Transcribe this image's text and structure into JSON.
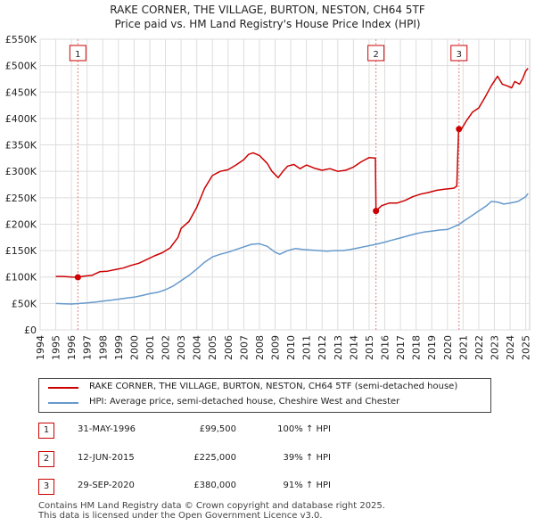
{
  "header": {
    "title_line1": "RAKE CORNER, THE VILLAGE, BURTON, NESTON, CH64 5TF",
    "title_line2": "Price paid vs. HM Land Registry's House Price Index (HPI)"
  },
  "colors": {
    "property": "#cc0000",
    "hpi": "#6699cc",
    "grid": "#dddddd",
    "marker_line": "#e08080"
  },
  "chart_data": {
    "type": "line",
    "title": "RAKE CORNER, THE VILLAGE, BURTON, NESTON, CH64 5TF",
    "subtitle": "Price paid vs. HM Land Registry's House Price Index (HPI)",
    "xlim": [
      1994,
      2025.25
    ],
    "ylim": [
      0,
      550000
    ],
    "yticks": [
      {
        "value": 0,
        "label": "£0"
      },
      {
        "value": 50000,
        "label": "£50K"
      },
      {
        "value": 100000,
        "label": "£100K"
      },
      {
        "value": 150000,
        "label": "£150K"
      },
      {
        "value": 200000,
        "label": "£200K"
      },
      {
        "value": 250000,
        "label": "£250K"
      },
      {
        "value": 300000,
        "label": "£300K"
      },
      {
        "value": 350000,
        "label": "£350K"
      },
      {
        "value": 400000,
        "label": "£400K"
      },
      {
        "value": 450000,
        "label": "£450K"
      },
      {
        "value": 500000,
        "label": "£500K"
      },
      {
        "value": 550000,
        "label": "£550K"
      }
    ],
    "xticks": [
      "1994",
      "1995",
      "1996",
      "1997",
      "1998",
      "1999",
      "2000",
      "2001",
      "2002",
      "2003",
      "2004",
      "2005",
      "2006",
      "2007",
      "2008",
      "2009",
      "2010",
      "2011",
      "2012",
      "2013",
      "2014",
      "2015",
      "2016",
      "2017",
      "2018",
      "2019",
      "2020",
      "2021",
      "2022",
      "2023",
      "2024",
      "2025"
    ],
    "grid": true,
    "series": [
      {
        "name": "RAKE CORNER, THE VILLAGE, BURTON, NESTON, CH64 5TF (semi-detached house)",
        "color": "#cc0000",
        "points": [
          [
            1995.0,
            101000
          ],
          [
            1995.5,
            101000
          ],
          [
            1996.0,
            100000
          ],
          [
            1996.41,
            99500
          ],
          [
            1996.8,
            101500
          ],
          [
            1997.3,
            103000
          ],
          [
            1997.8,
            110000
          ],
          [
            1998.3,
            111000
          ],
          [
            1998.8,
            114000
          ],
          [
            1999.3,
            117000
          ],
          [
            1999.8,
            122000
          ],
          [
            2000.3,
            126000
          ],
          [
            2000.8,
            133000
          ],
          [
            2001.3,
            140000
          ],
          [
            2001.8,
            146000
          ],
          [
            2002.3,
            155000
          ],
          [
            2002.8,
            175000
          ],
          [
            2003.0,
            192000
          ],
          [
            2003.5,
            205000
          ],
          [
            2004.0,
            232000
          ],
          [
            2004.5,
            268000
          ],
          [
            2005.0,
            292000
          ],
          [
            2005.5,
            300000
          ],
          [
            2006.0,
            303000
          ],
          [
            2006.5,
            312000
          ],
          [
            2007.0,
            322000
          ],
          [
            2007.3,
            332000
          ],
          [
            2007.6,
            335000
          ],
          [
            2008.0,
            330000
          ],
          [
            2008.5,
            315000
          ],
          [
            2008.8,
            300000
          ],
          [
            2009.2,
            288000
          ],
          [
            2009.5,
            300000
          ],
          [
            2009.8,
            310000
          ],
          [
            2010.2,
            313000
          ],
          [
            2010.6,
            305000
          ],
          [
            2011.0,
            312000
          ],
          [
            2011.5,
            306000
          ],
          [
            2012.0,
            302000
          ],
          [
            2012.5,
            305000
          ],
          [
            2013.0,
            300000
          ],
          [
            2013.5,
            302000
          ],
          [
            2014.0,
            308000
          ],
          [
            2014.5,
            318000
          ],
          [
            2015.0,
            326000
          ],
          [
            2015.4,
            325000
          ],
          [
            2015.44,
            225000
          ],
          [
            2015.8,
            235000
          ],
          [
            2016.3,
            240000
          ],
          [
            2016.8,
            240000
          ],
          [
            2017.3,
            245000
          ],
          [
            2017.8,
            252000
          ],
          [
            2018.3,
            257000
          ],
          [
            2018.8,
            260000
          ],
          [
            2019.3,
            264000
          ],
          [
            2019.8,
            266000
          ],
          [
            2020.4,
            268000
          ],
          [
            2020.6,
            272000
          ],
          [
            2020.72,
            382000
          ],
          [
            2020.9,
            380000
          ],
          [
            2021.2,
            395000
          ],
          [
            2021.6,
            412000
          ],
          [
            2022.0,
            420000
          ],
          [
            2022.4,
            440000
          ],
          [
            2022.8,
            462000
          ],
          [
            2023.2,
            480000
          ],
          [
            2023.5,
            465000
          ],
          [
            2023.8,
            462000
          ],
          [
            2024.1,
            458000
          ],
          [
            2024.3,
            470000
          ],
          [
            2024.6,
            465000
          ],
          [
            2024.8,
            475000
          ],
          [
            2025.0,
            490000
          ],
          [
            2025.15,
            495000
          ]
        ]
      },
      {
        "name": "HPI: Average price, semi-detached house, Cheshire West and Chester",
        "color": "#6699cc",
        "points": [
          [
            1995.0,
            50000
          ],
          [
            1995.5,
            49500
          ],
          [
            1996.0,
            49000
          ],
          [
            1996.41,
            49700
          ],
          [
            1997.0,
            51000
          ],
          [
            1997.5,
            52500
          ],
          [
            1998.0,
            54500
          ],
          [
            1998.5,
            56000
          ],
          [
            1999.0,
            58000
          ],
          [
            1999.5,
            60000
          ],
          [
            2000.0,
            62000
          ],
          [
            2000.5,
            65000
          ],
          [
            2001.0,
            68500
          ],
          [
            2001.5,
            71000
          ],
          [
            2002.0,
            76000
          ],
          [
            2002.5,
            83000
          ],
          [
            2003.0,
            93000
          ],
          [
            2003.5,
            103000
          ],
          [
            2004.0,
            115000
          ],
          [
            2004.5,
            128000
          ],
          [
            2005.0,
            138000
          ],
          [
            2005.5,
            143000
          ],
          [
            2006.0,
            147000
          ],
          [
            2006.5,
            152000
          ],
          [
            2007.0,
            157000
          ],
          [
            2007.5,
            162000
          ],
          [
            2008.0,
            163000
          ],
          [
            2008.5,
            158000
          ],
          [
            2009.0,
            147000
          ],
          [
            2009.3,
            143000
          ],
          [
            2009.8,
            150000
          ],
          [
            2010.3,
            154000
          ],
          [
            2010.8,
            152000
          ],
          [
            2011.3,
            151000
          ],
          [
            2011.8,
            150000
          ],
          [
            2012.3,
            149000
          ],
          [
            2012.8,
            150000
          ],
          [
            2013.3,
            150000
          ],
          [
            2013.8,
            152000
          ],
          [
            2014.3,
            155000
          ],
          [
            2014.8,
            158000
          ],
          [
            2015.44,
            162000
          ],
          [
            2016.0,
            166000
          ],
          [
            2016.5,
            170000
          ],
          [
            2017.0,
            174000
          ],
          [
            2017.5,
            178000
          ],
          [
            2018.0,
            182000
          ],
          [
            2018.5,
            185000
          ],
          [
            2019.0,
            187000
          ],
          [
            2019.5,
            189000
          ],
          [
            2020.0,
            190000
          ],
          [
            2020.72,
            199000
          ],
          [
            2021.0,
            205000
          ],
          [
            2021.5,
            215000
          ],
          [
            2022.0,
            225000
          ],
          [
            2022.5,
            235000
          ],
          [
            2022.8,
            243000
          ],
          [
            2023.2,
            242000
          ],
          [
            2023.6,
            238000
          ],
          [
            2024.0,
            240000
          ],
          [
            2024.5,
            243000
          ],
          [
            2025.0,
            252000
          ],
          [
            2025.15,
            258000
          ]
        ]
      }
    ],
    "transactions": [
      {
        "id": "1",
        "x": 1996.41,
        "price": 99500
      },
      {
        "id": "2",
        "x": 2015.44,
        "price": 225000
      },
      {
        "id": "3",
        "x": 2020.74,
        "price": 380000
      }
    ]
  },
  "legend": {
    "property_label": "RAKE CORNER, THE VILLAGE, BURTON, NESTON, CH64 5TF (semi-detached house)",
    "hpi_label": "HPI: Average price, semi-detached house, Cheshire West and Chester"
  },
  "table": {
    "rows": [
      {
        "num": "1",
        "date": "31-MAY-1996",
        "price": "£99,500",
        "hpi": "100% ↑ HPI"
      },
      {
        "num": "2",
        "date": "12-JUN-2015",
        "price": "£225,000",
        "hpi": "39% ↑ HPI"
      },
      {
        "num": "3",
        "date": "29-SEP-2020",
        "price": "£380,000",
        "hpi": "91% ↑ HPI"
      }
    ]
  },
  "footer": {
    "line1": "Contains HM Land Registry data © Crown copyright and database right 2025.",
    "line2": "This data is licensed under the Open Government Licence v3.0."
  }
}
